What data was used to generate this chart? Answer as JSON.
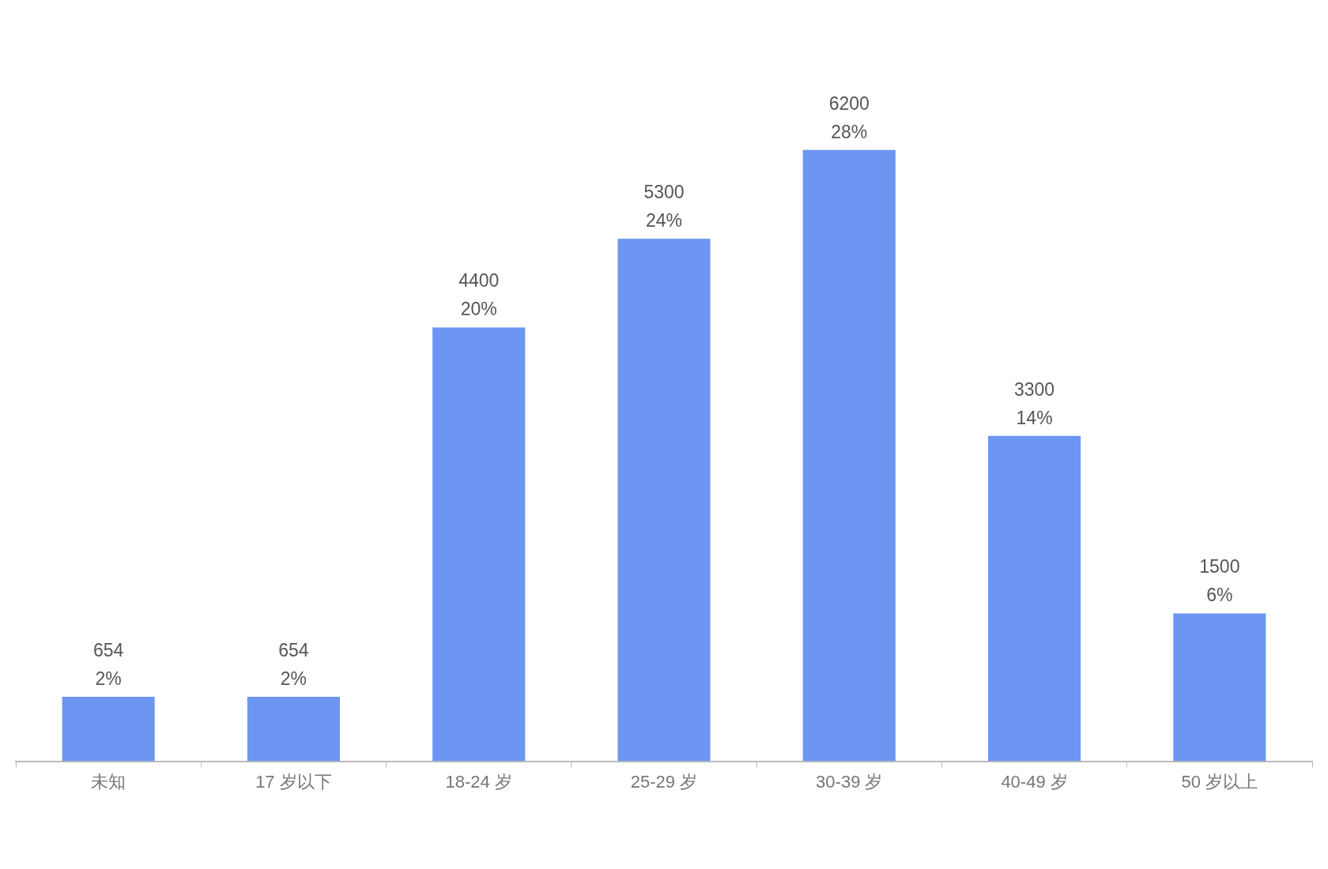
{
  "chart_data": {
    "type": "bar",
    "categories": [
      "未知",
      "17 岁以下",
      "18-24 岁",
      "25-29 岁",
      "30-39 岁",
      "40-49 岁",
      "50 岁以上"
    ],
    "values": [
      654,
      654,
      4400,
      5300,
      6200,
      3300,
      1500
    ],
    "value_labels": [
      "654\n2%",
      "654\n2%",
      "4400\n20%",
      "5300\n24%",
      "6200\n28%",
      "3300\n14%",
      "1500\n6%"
    ],
    "color": "#6d96f2",
    "grid": false,
    "legend": false,
    "tick_labels": "x"
  }
}
